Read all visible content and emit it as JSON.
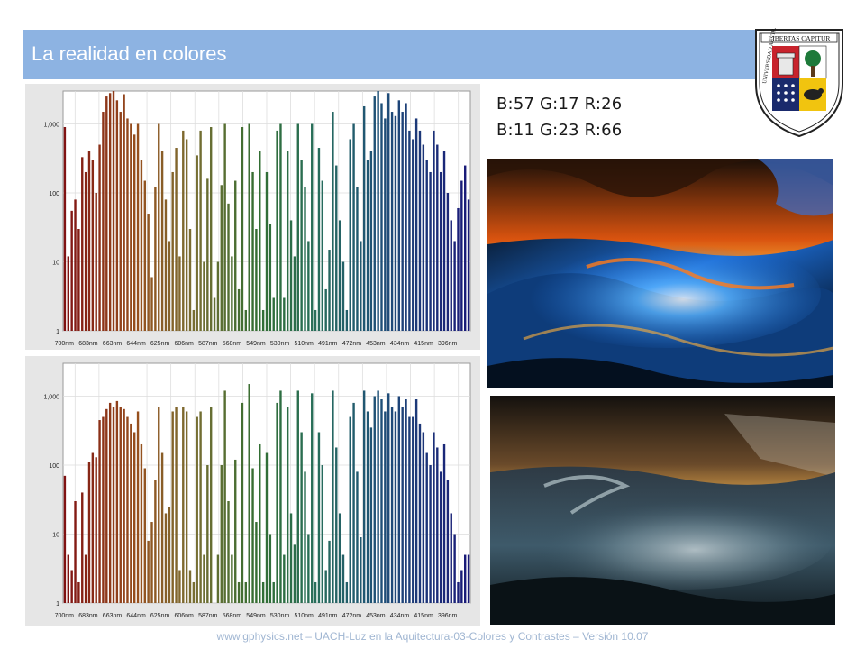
{
  "slide": {
    "title": "La realidad en colores",
    "footer": "www.gphysics.net – UACH-Luz en la Aquitectura-03-Colores y Contrastes – Versión 10.07"
  },
  "logo": {
    "icon": "university-seal-icon",
    "motto": "LIBERTAS CAPITUR",
    "ring_text": "UNIVERSIDAD AUSTRAL DE CHILE"
  },
  "rgb_readouts": [
    {
      "label": "B:57 G:17 R:26"
    },
    {
      "label": "B:11 G:23 R:66"
    }
  ],
  "photos": [
    {
      "name": "stormy-sea-enhanced-photo",
      "icon": "ocean-wave-image"
    },
    {
      "name": "stormy-sea-original-photo",
      "icon": "ocean-wave-image"
    }
  ],
  "colors": {
    "title_bar": "#8db3e2",
    "panel_bg": "#e6e6e6",
    "footer_text": "#a0b6d2"
  },
  "chart_data": [
    {
      "type": "bar",
      "scale": "log",
      "ylim": [
        1,
        3000
      ],
      "yticks": [
        "1",
        "10",
        "100",
        "1,000"
      ],
      "xticks": [
        "700nm",
        "683nm",
        "663nm",
        "644nm",
        "625nm",
        "606nm",
        "587nm",
        "568nm",
        "549nm",
        "530nm",
        "510nm",
        "491nm",
        "472nm",
        "453nm",
        "434nm",
        "415nm",
        "396nm"
      ],
      "values": [
        900,
        12,
        55,
        80,
        30,
        330,
        200,
        400,
        300,
        100,
        500,
        1500,
        2500,
        2800,
        3000,
        2200,
        1500,
        2700,
        1200,
        1000,
        700,
        1000,
        300,
        150,
        50,
        6,
        120,
        1000,
        400,
        80,
        20,
        200,
        450,
        12,
        800,
        600,
        30,
        2,
        350,
        800,
        10,
        160,
        900,
        3,
        10,
        130,
        1000,
        70,
        12,
        150,
        4,
        900,
        2,
        1000,
        200,
        30,
        400,
        2,
        200,
        35,
        3,
        800,
        1000,
        3,
        400,
        40,
        12,
        1000,
        300,
        120,
        20,
        1000,
        2,
        450,
        150,
        4,
        15,
        1500,
        250,
        40,
        10,
        2,
        600,
        1000,
        120,
        20,
        1800,
        300,
        400,
        2500,
        3000,
        2000,
        1200,
        2800,
        1500,
        1300,
        2200,
        1500,
        2000,
        800,
        600,
        1200,
        800,
        500,
        300,
        200,
        800,
        500,
        200,
        400,
        100,
        40,
        20,
        60,
        150,
        250,
        80
      ]
    },
    {
      "type": "bar",
      "scale": "log",
      "ylim": [
        1,
        3000
      ],
      "yticks": [
        "1",
        "10",
        "100",
        "1,000"
      ],
      "xticks": [
        "700nm",
        "683nm",
        "663nm",
        "644nm",
        "625nm",
        "606nm",
        "587nm",
        "568nm",
        "549nm",
        "530nm",
        "510nm",
        "491nm",
        "472nm",
        "453nm",
        "434nm",
        "415nm",
        "396nm"
      ],
      "values": [
        70,
        5,
        3,
        30,
        2,
        40,
        5,
        110,
        150,
        130,
        450,
        500,
        650,
        800,
        700,
        850,
        700,
        650,
        500,
        400,
        300,
        600,
        200,
        90,
        8,
        15,
        60,
        700,
        150,
        20,
        25,
        600,
        700,
        3,
        700,
        600,
        3,
        2,
        500,
        600,
        5,
        100,
        700,
        1,
        5,
        100,
        1200,
        30,
        5,
        120,
        2,
        800,
        2,
        1500,
        90,
        15,
        200,
        2,
        150,
        10,
        2,
        800,
        1200,
        5,
        700,
        20,
        7,
        1200,
        300,
        80,
        10,
        1100,
        2,
        300,
        100,
        3,
        8,
        1200,
        180,
        20,
        5,
        2,
        500,
        800,
        80,
        9,
        1200,
        600,
        350,
        1000,
        1200,
        900,
        600,
        1100,
        700,
        600,
        1000,
        700,
        900,
        500,
        500,
        900,
        400,
        300,
        150,
        100,
        300,
        180,
        80,
        200,
        60,
        20,
        10,
        2,
        3,
        5,
        5
      ]
    }
  ]
}
